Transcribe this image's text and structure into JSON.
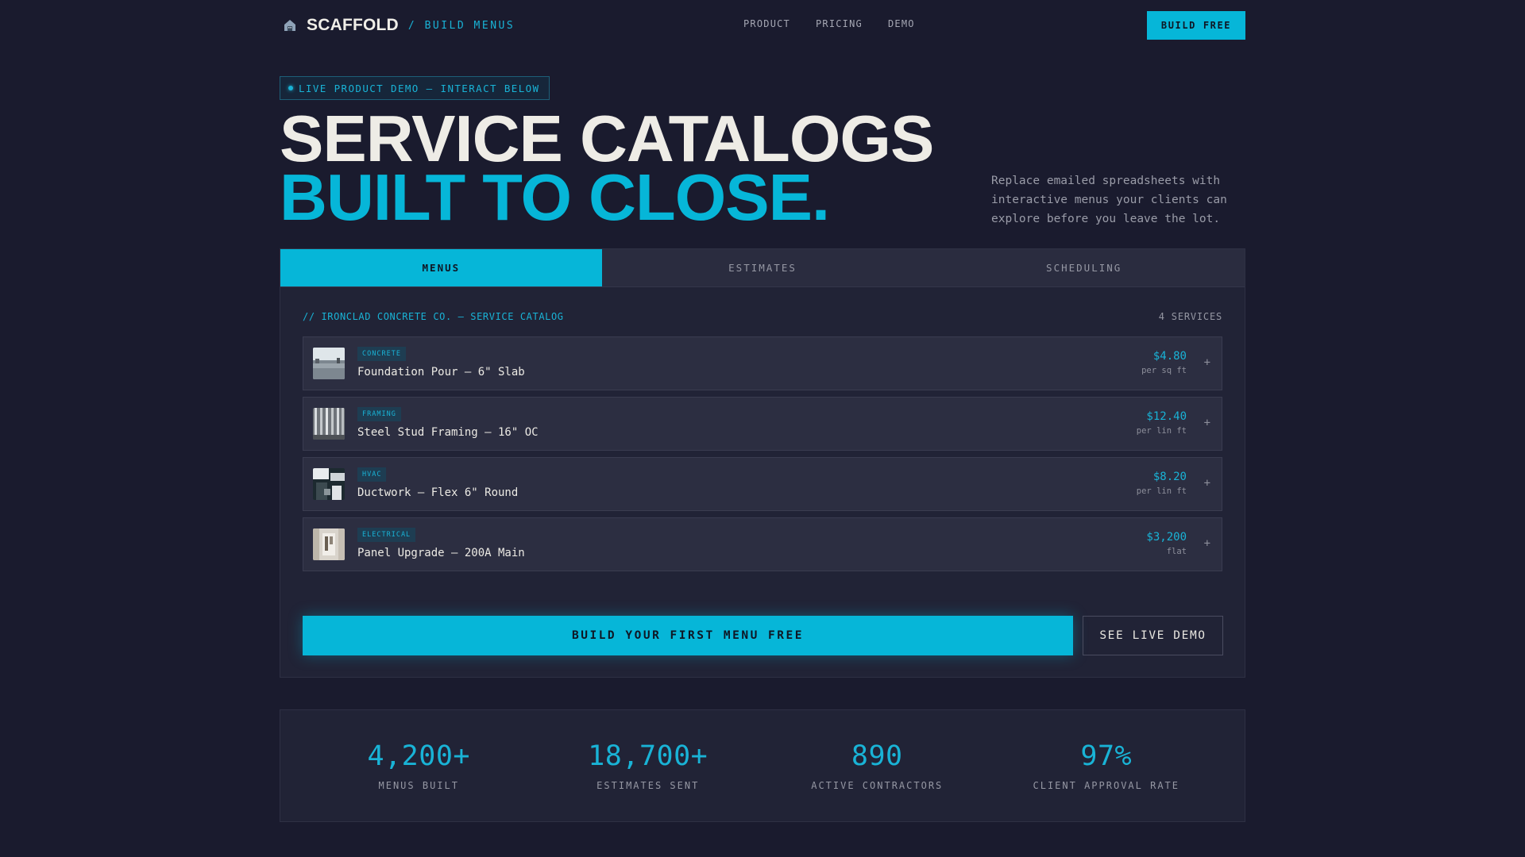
{
  "header": {
    "brand_name": "SCAFFOLD",
    "brand_sub": "/ BUILD MENUS",
    "nav": [
      "PRODUCT",
      "PRICING",
      "DEMO"
    ],
    "cta_label": "BUILD FREE"
  },
  "hero": {
    "badge": "LIVE PRODUCT DEMO — INTERACT BELOW",
    "headline_line1": "SERVICE CATALOGS",
    "headline_line2": "BUILT TO CLOSE.",
    "description": "Replace emailed spreadsheets with interactive menus your clients can explore before you leave the lot."
  },
  "demo": {
    "tabs": [
      {
        "label": "MENUS",
        "active": true
      },
      {
        "label": "ESTIMATES",
        "active": false
      },
      {
        "label": "SCHEDULING",
        "active": false
      }
    ],
    "catalog_title": "// IRONCLAD CONCRETE CO. — SERVICE CATALOG",
    "catalog_count": "4 SERVICES",
    "services": [
      {
        "tag": "CONCRETE",
        "name": "Foundation Pour — 6\" Slab",
        "price": "$4.80",
        "unit": "per sq ft",
        "add": "+"
      },
      {
        "tag": "FRAMING",
        "name": "Steel Stud Framing — 16\" OC",
        "price": "$12.40",
        "unit": "per lin ft",
        "add": "+"
      },
      {
        "tag": "HVAC",
        "name": "Ductwork — Flex 6\" Round",
        "price": "$8.20",
        "unit": "per lin ft",
        "add": "+"
      },
      {
        "tag": "ELECTRICAL",
        "name": "Panel Upgrade — 200A Main",
        "price": "$3,200",
        "unit": "flat",
        "add": "+"
      }
    ],
    "cta_primary": "BUILD YOUR FIRST MENU FREE",
    "cta_secondary": "SEE LIVE DEMO"
  },
  "stats": [
    {
      "value": "4,200+",
      "label": "MENUS BUILT"
    },
    {
      "value": "18,700+",
      "label": "ESTIMATES SENT"
    },
    {
      "value": "890",
      "label": "ACTIVE CONTRACTORS"
    },
    {
      "value": "97%",
      "label": "CLIENT APPROVAL RATE"
    }
  ],
  "colors": {
    "background": "#1a1b2e",
    "accent": "#06b6d8",
    "panel": "#212336"
  }
}
